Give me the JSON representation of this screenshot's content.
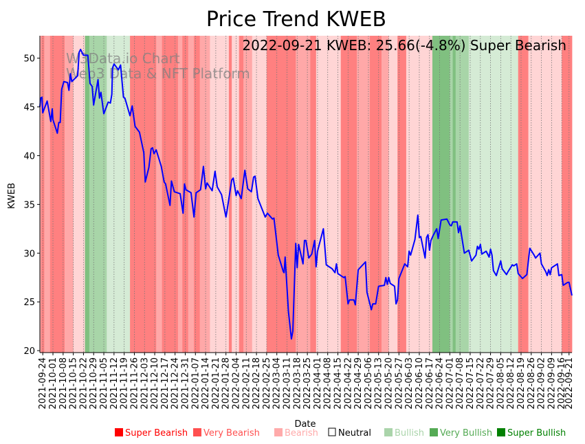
{
  "chart_data": {
    "type": "line",
    "title": "Price Trend KWEB",
    "annotation": "2022-09-21 KWEB: 25.66(-4.8%) Super Bearish",
    "watermark": [
      "W3Data.io Chart",
      "Web3 Data & NFT Platform"
    ],
    "xlabel": "Date",
    "ylabel": "KWEB",
    "x_origin": "2021-09-22",
    "x_unit": "days since x_origin",
    "xlim": [
      0,
      366
    ],
    "ylim": [
      19.8,
      52.3
    ],
    "yticks": [
      20,
      25,
      30,
      35,
      40,
      45,
      50
    ],
    "xticks": [
      "2021-09-24",
      "2021-10-01",
      "2021-10-08",
      "2021-10-15",
      "2021-10-22",
      "2021-10-29",
      "2021-11-05",
      "2021-11-12",
      "2021-11-19",
      "2021-11-26",
      "2021-12-03",
      "2021-12-10",
      "2021-12-17",
      "2021-12-24",
      "2021-12-31",
      "2022-01-07",
      "2022-01-14",
      "2022-01-21",
      "2022-01-28",
      "2022-02-04",
      "2022-02-11",
      "2022-02-18",
      "2022-02-25",
      "2022-03-04",
      "2022-03-11",
      "2022-03-18",
      "2022-03-25",
      "2022-04-01",
      "2022-04-08",
      "2022-04-15",
      "2022-04-22",
      "2022-04-29",
      "2022-05-06",
      "2022-05-13",
      "2022-05-20",
      "2022-05-27",
      "2022-06-03",
      "2022-06-10",
      "2022-06-17",
      "2022-06-24",
      "2022-07-01",
      "2022-07-08",
      "2022-07-15",
      "2022-07-22",
      "2022-07-29",
      "2022-08-05",
      "2022-08-12",
      "2022-08-19",
      "2022-08-26",
      "2022-09-02",
      "2022-09-09",
      "2022-09-16",
      "2022-09-21"
    ],
    "grid": "vertical dotted at x ticks",
    "series": [
      {
        "name": "KWEB",
        "color": "#0000ff",
        "points": [
          [
            0,
            45.0
          ],
          [
            0.5,
            45.9
          ],
          [
            1.4,
            46.0
          ],
          [
            2,
            44.4
          ],
          [
            5,
            45.6
          ],
          [
            7.5,
            43.5
          ],
          [
            8.5,
            44.8
          ],
          [
            9,
            43.7
          ],
          [
            12,
            42.3
          ],
          [
            13,
            43.4
          ],
          [
            14,
            43.4
          ],
          [
            15,
            46.8
          ],
          [
            16.5,
            47.6
          ],
          [
            19,
            47.5
          ],
          [
            20,
            46.7
          ],
          [
            21,
            48.4
          ],
          [
            22,
            47.6
          ],
          [
            26,
            48.2
          ],
          [
            27,
            50.6
          ],
          [
            28,
            50.9
          ],
          [
            30,
            50.3
          ],
          [
            33,
            50.3
          ],
          [
            34.5,
            47.4
          ],
          [
            36,
            47.1
          ],
          [
            37,
            45.2
          ],
          [
            40,
            47.8
          ],
          [
            41,
            45.9
          ],
          [
            42,
            46.5
          ],
          [
            44,
            44.3
          ],
          [
            47,
            45.5
          ],
          [
            48.5,
            45.4
          ],
          [
            49.5,
            46.3
          ],
          [
            50,
            49.0
          ],
          [
            51,
            49.4
          ],
          [
            54,
            48.8
          ],
          [
            55.5,
            49.3
          ],
          [
            57.5,
            46.0
          ],
          [
            58.5,
            45.9
          ],
          [
            62,
            44.1
          ],
          [
            63.5,
            45.1
          ],
          [
            65.5,
            43.0
          ],
          [
            68.5,
            42.4
          ],
          [
            71.5,
            40.3
          ],
          [
            72.5,
            37.3
          ],
          [
            75,
            38.8
          ],
          [
            76.5,
            40.7
          ],
          [
            77.5,
            40.8
          ],
          [
            78.5,
            40.2
          ],
          [
            80,
            40.6
          ],
          [
            83.5,
            38.9
          ],
          [
            85.5,
            37.3
          ],
          [
            86.5,
            37.1
          ],
          [
            89.5,
            34.9
          ],
          [
            90.5,
            37.4
          ],
          [
            92.5,
            36.3
          ],
          [
            96.5,
            36.1
          ],
          [
            98.5,
            34.1
          ],
          [
            99.5,
            37.1
          ],
          [
            100.5,
            36.5
          ],
          [
            104,
            36.2
          ],
          [
            106,
            33.7
          ],
          [
            107.5,
            36.2
          ],
          [
            110.5,
            36.5
          ],
          [
            112,
            38.3
          ],
          [
            112.5,
            38.9
          ],
          [
            114,
            36.6
          ],
          [
            115,
            37.2
          ],
          [
            118.5,
            36.4
          ],
          [
            120.5,
            38.4
          ],
          [
            122,
            36.8
          ],
          [
            125,
            36.0
          ],
          [
            128,
            33.7
          ],
          [
            128.5,
            34.1
          ],
          [
            132,
            37.5
          ],
          [
            133,
            37.7
          ],
          [
            135,
            35.9
          ],
          [
            136,
            36.4
          ],
          [
            138.5,
            35.6
          ],
          [
            141,
            38.5
          ],
          [
            143,
            36.6
          ],
          [
            145.5,
            36.3
          ],
          [
            147,
            37.8
          ],
          [
            148,
            37.9
          ],
          [
            150,
            35.6
          ],
          [
            155,
            33.7
          ],
          [
            156.5,
            34.1
          ],
          [
            160,
            33.5
          ],
          [
            161,
            33.6
          ],
          [
            164,
            29.8
          ],
          [
            167.5,
            28.1
          ],
          [
            168,
            28.0
          ],
          [
            168.7,
            29.6
          ],
          [
            171,
            24.0
          ],
          [
            173,
            21.2
          ],
          [
            174,
            22.0
          ],
          [
            176,
            31.0
          ],
          [
            177,
            28.5
          ],
          [
            178,
            30.9
          ],
          [
            181,
            28.9
          ],
          [
            182,
            31.3
          ],
          [
            183,
            31.3
          ],
          [
            185,
            29.5
          ],
          [
            187,
            29.9
          ],
          [
            189,
            31.3
          ],
          [
            190,
            28.6
          ],
          [
            191,
            30.2
          ],
          [
            195,
            32.5
          ],
          [
            197,
            28.8
          ],
          [
            201,
            28.4
          ],
          [
            203,
            28.0
          ],
          [
            204,
            28.9
          ],
          [
            205,
            27.9
          ],
          [
            209,
            27.5
          ],
          [
            210,
            27.6
          ],
          [
            212,
            24.8
          ],
          [
            213,
            25.2
          ],
          [
            216,
            25.2
          ],
          [
            217,
            24.7
          ],
          [
            219,
            28.3
          ],
          [
            224,
            29.1
          ],
          [
            225,
            26.0
          ],
          [
            228,
            24.2
          ],
          [
            229,
            24.8
          ],
          [
            231,
            24.8
          ],
          [
            233,
            26.6
          ],
          [
            237,
            26.7
          ],
          [
            238,
            27.5
          ],
          [
            239,
            26.8
          ],
          [
            240,
            27.5
          ],
          [
            241,
            26.9
          ],
          [
            244,
            26.6
          ],
          [
            245,
            24.8
          ],
          [
            246,
            25.2
          ],
          [
            247,
            27.4
          ],
          [
            251,
            28.9
          ],
          [
            253,
            28.6
          ],
          [
            254,
            30.2
          ],
          [
            255,
            29.8
          ],
          [
            258,
            31.4
          ],
          [
            260,
            33.9
          ],
          [
            261,
            31.6
          ],
          [
            262,
            31.7
          ],
          [
            265,
            29.5
          ],
          [
            266,
            31.6
          ],
          [
            267,
            31.9
          ],
          [
            268,
            30.3
          ],
          [
            269,
            31.3
          ],
          [
            270.5,
            31.8
          ],
          [
            273,
            32.5
          ],
          [
            274,
            31.5
          ],
          [
            276,
            33.4
          ],
          [
            280,
            33.5
          ],
          [
            282,
            32.9
          ],
          [
            283,
            32.8
          ],
          [
            284,
            33.2
          ],
          [
            287,
            33.2
          ],
          [
            288,
            32.1
          ],
          [
            289,
            32.8
          ],
          [
            292,
            30.0
          ],
          [
            295,
            30.3
          ],
          [
            297,
            29.2
          ],
          [
            300,
            29.8
          ],
          [
            301,
            30.7
          ],
          [
            302,
            30.4
          ],
          [
            303,
            30.9
          ],
          [
            304,
            29.9
          ],
          [
            307,
            30.2
          ],
          [
            309,
            29.6
          ],
          [
            310,
            30.4
          ],
          [
            311,
            29.8
          ],
          [
            312,
            28.2
          ],
          [
            314,
            27.7
          ],
          [
            317,
            29.2
          ],
          [
            318,
            28.4
          ],
          [
            321,
            27.8
          ],
          [
            322,
            28.1
          ],
          [
            325,
            28.8
          ],
          [
            326,
            28.7
          ],
          [
            328,
            28.9
          ],
          [
            329,
            27.9
          ],
          [
            332,
            27.4
          ],
          [
            335,
            27.8
          ],
          [
            337,
            30.5
          ],
          [
            340,
            29.8
          ],
          [
            341,
            29.5
          ],
          [
            344,
            30.0
          ],
          [
            345,
            28.9
          ],
          [
            348,
            28.1
          ],
          [
            349,
            27.7
          ],
          [
            350,
            28.3
          ],
          [
            351,
            27.8
          ],
          [
            352,
            28.5
          ],
          [
            356,
            28.9
          ],
          [
            357,
            27.7
          ],
          [
            359,
            27.8
          ],
          [
            360,
            26.7
          ],
          [
            363,
            27.0
          ],
          [
            364,
            27.0
          ],
          [
            366,
            25.66
          ]
        ]
      }
    ],
    "sentiment_colors": {
      "super_bearish": "#ff8080",
      "very_bearish": "#ffa8a8",
      "bearish": "#ffd5d5",
      "bullish": "#d5ebd5",
      "very_bullish": "#a8d5a8",
      "super_bullish": "#80c080"
    },
    "sentiment_bands": [
      [
        "2021-09-22",
        "2021-09-23",
        "very_bearish"
      ],
      [
        "2021-09-23",
        "2021-09-25",
        "super_bearish"
      ],
      [
        "2021-09-25",
        "2021-09-29",
        "very_bearish"
      ],
      [
        "2021-09-29",
        "2021-10-09",
        "super_bearish"
      ],
      [
        "2021-10-09",
        "2021-10-15",
        "very_bearish"
      ],
      [
        "2021-10-15",
        "2021-10-23",
        "bearish"
      ],
      [
        "2021-10-23",
        "2021-10-26",
        "super_bullish"
      ],
      [
        "2021-10-26",
        "2021-11-07",
        "very_bullish"
      ],
      [
        "2021-11-07",
        "2021-11-23",
        "bullish"
      ],
      [
        "2021-11-23",
        "2021-12-11",
        "super_bearish"
      ],
      [
        "2021-12-11",
        "2021-12-15",
        "very_bearish"
      ],
      [
        "2021-12-15",
        "2021-12-26",
        "super_bearish"
      ],
      [
        "2021-12-26",
        "2021-12-29",
        "very_bearish"
      ],
      [
        "2021-12-29",
        "2022-01-02",
        "super_bearish"
      ],
      [
        "2022-01-02",
        "2022-01-06",
        "very_bearish"
      ],
      [
        "2022-01-06",
        "2022-01-10",
        "super_bearish"
      ],
      [
        "2022-01-10",
        "2022-01-17",
        "very_bearish"
      ],
      [
        "2022-01-17",
        "2022-01-30",
        "bearish"
      ],
      [
        "2022-01-30",
        "2022-02-01",
        "super_bearish"
      ],
      [
        "2022-02-01",
        "2022-02-06",
        "bearish"
      ],
      [
        "2022-02-06",
        "2022-02-09",
        "super_bearish"
      ],
      [
        "2022-02-09",
        "2022-02-15",
        "very_bearish"
      ],
      [
        "2022-02-15",
        "2022-02-25",
        "bearish"
      ],
      [
        "2022-02-25",
        "2022-03-17",
        "super_bearish"
      ],
      [
        "2022-03-17",
        "2022-03-27",
        "very_bearish"
      ],
      [
        "2022-03-27",
        "2022-03-31",
        "super_bearish"
      ],
      [
        "2022-03-31",
        "2022-04-17",
        "bearish"
      ],
      [
        "2022-04-17",
        "2022-04-28",
        "super_bearish"
      ],
      [
        "2022-04-28",
        "2022-05-07",
        "very_bearish"
      ],
      [
        "2022-05-07",
        "2022-05-15",
        "super_bearish"
      ],
      [
        "2022-05-15",
        "2022-05-20",
        "very_bearish"
      ],
      [
        "2022-05-20",
        "2022-05-26",
        "bearish"
      ],
      [
        "2022-05-26",
        "2022-06-01",
        "super_bearish"
      ],
      [
        "2022-06-01",
        "2022-06-19",
        "bearish"
      ],
      [
        "2022-06-19",
        "2022-07-01",
        "super_bullish"
      ],
      [
        "2022-07-01",
        "2022-07-03",
        "very_bullish"
      ],
      [
        "2022-07-03",
        "2022-07-05",
        "super_bullish"
      ],
      [
        "2022-07-05",
        "2022-07-14",
        "very_bullish"
      ],
      [
        "2022-07-14",
        "2022-08-17",
        "bullish"
      ],
      [
        "2022-08-17",
        "2022-08-24",
        "super_bearish"
      ],
      [
        "2022-08-24",
        "2022-09-16",
        "bearish"
      ],
      [
        "2022-09-16",
        "2022-09-23",
        "super_bearish"
      ]
    ],
    "legend_placement": "bottom",
    "legend": [
      {
        "label": "Super Bearish",
        "color": "#ff0000"
      },
      {
        "label": "Very Bearish",
        "color": "#ff5050"
      },
      {
        "label": "Bearish",
        "color": "#ffaaaa"
      },
      {
        "label": "Neutral",
        "color": "#000000",
        "hollow": true
      },
      {
        "label": "Bullish",
        "color": "#aad4aa"
      },
      {
        "label": "Very Bullish",
        "color": "#55aa55"
      },
      {
        "label": "Super Bullish",
        "color": "#008000"
      }
    ]
  }
}
